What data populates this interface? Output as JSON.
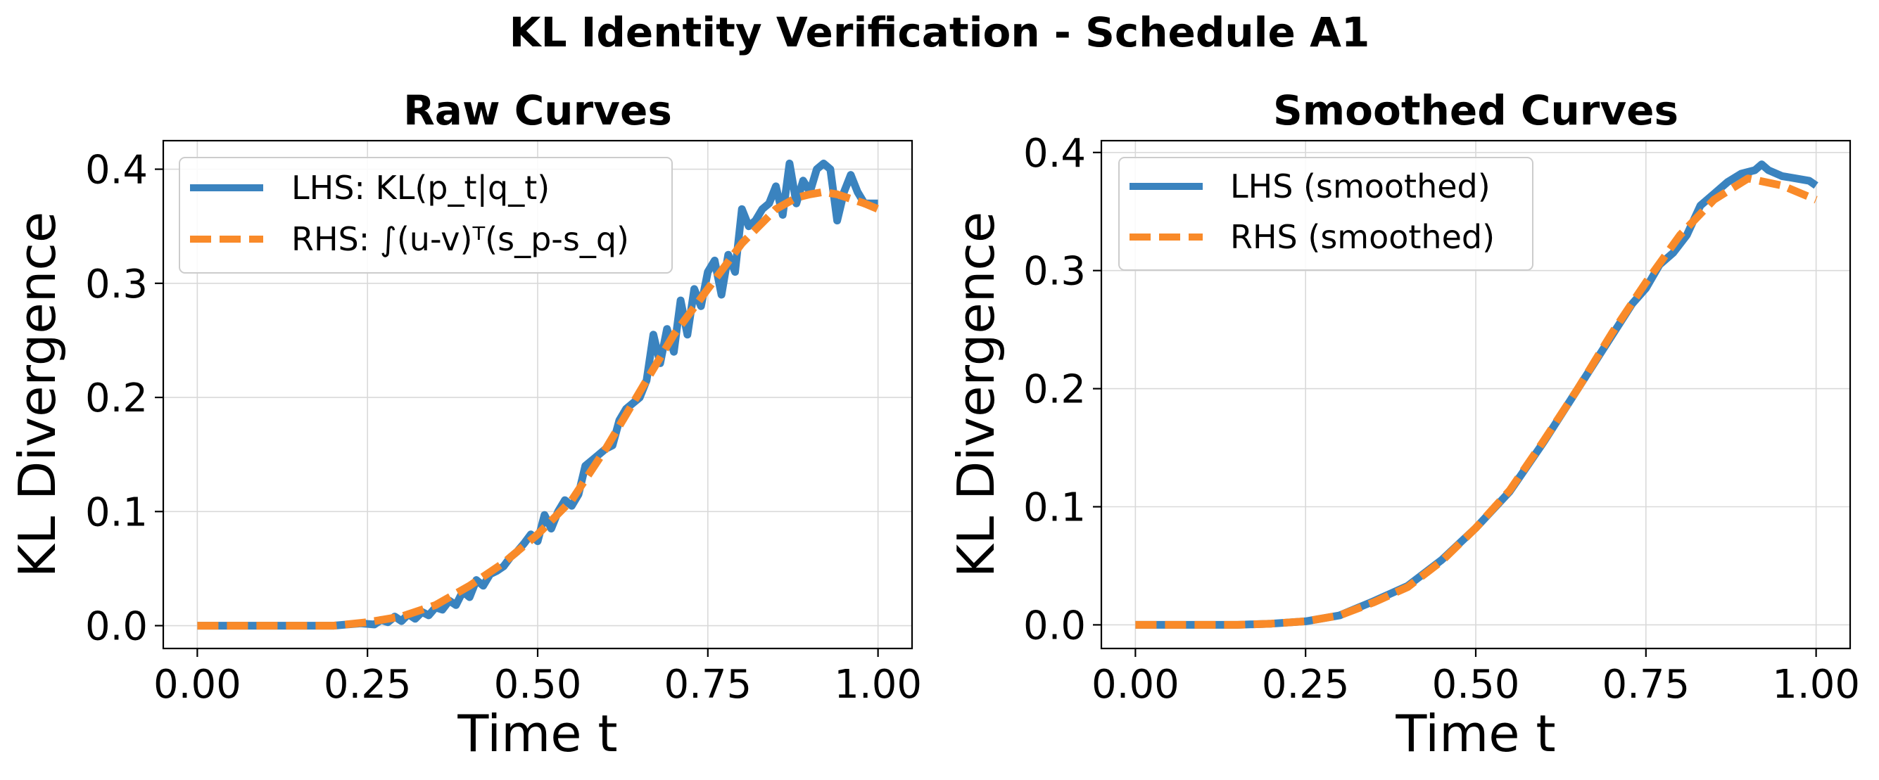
{
  "figure": {
    "suptitle": "KL Identity Verification - Schedule A1",
    "colors": {
      "lhs": "#3a83bf",
      "rhs": "#f98a29"
    }
  },
  "chart_data": [
    {
      "type": "line",
      "title": "Raw Curves",
      "xlabel": "Time t",
      "ylabel": "KL Divergence",
      "xlim": [
        -0.05,
        1.05
      ],
      "ylim": [
        -0.02,
        0.425
      ],
      "xticks": [
        0.0,
        0.25,
        0.5,
        0.75,
        1.0
      ],
      "xtick_labels": [
        "0.00",
        "0.25",
        "0.50",
        "0.75",
        "1.00"
      ],
      "yticks": [
        0.0,
        0.1,
        0.2,
        0.3,
        0.4
      ],
      "ytick_labels": [
        "0.0",
        "0.1",
        "0.2",
        "0.3",
        "0.4"
      ],
      "grid": true,
      "legend_position": "upper-left",
      "series": [
        {
          "name": "LHS: KL(p_t|q_t)",
          "style": "solid",
          "x": [
            0.0,
            0.05,
            0.1,
            0.15,
            0.2,
            0.22,
            0.24,
            0.26,
            0.27,
            0.28,
            0.29,
            0.3,
            0.31,
            0.32,
            0.33,
            0.34,
            0.35,
            0.36,
            0.37,
            0.38,
            0.39,
            0.4,
            0.41,
            0.42,
            0.43,
            0.44,
            0.45,
            0.46,
            0.47,
            0.48,
            0.49,
            0.5,
            0.51,
            0.52,
            0.53,
            0.54,
            0.55,
            0.56,
            0.57,
            0.58,
            0.59,
            0.6,
            0.61,
            0.62,
            0.63,
            0.64,
            0.65,
            0.66,
            0.67,
            0.68,
            0.69,
            0.7,
            0.71,
            0.72,
            0.73,
            0.74,
            0.75,
            0.76,
            0.77,
            0.78,
            0.79,
            0.8,
            0.81,
            0.82,
            0.83,
            0.84,
            0.85,
            0.86,
            0.87,
            0.88,
            0.89,
            0.9,
            0.91,
            0.92,
            0.93,
            0.94,
            0.95,
            0.96,
            0.97,
            0.98,
            0.99,
            1.0
          ],
          "y": [
            0.0,
            0.0,
            0.0,
            0.0,
            0.0,
            0.001,
            0.002,
            0.001,
            0.005,
            0.003,
            0.008,
            0.004,
            0.01,
            0.006,
            0.012,
            0.009,
            0.016,
            0.014,
            0.022,
            0.018,
            0.03,
            0.025,
            0.04,
            0.035,
            0.045,
            0.048,
            0.052,
            0.06,
            0.065,
            0.072,
            0.08,
            0.074,
            0.097,
            0.085,
            0.1,
            0.11,
            0.105,
            0.115,
            0.14,
            0.145,
            0.15,
            0.155,
            0.158,
            0.18,
            0.19,
            0.195,
            0.2,
            0.215,
            0.255,
            0.23,
            0.26,
            0.24,
            0.285,
            0.255,
            0.295,
            0.28,
            0.31,
            0.32,
            0.29,
            0.325,
            0.31,
            0.365,
            0.35,
            0.355,
            0.365,
            0.37,
            0.385,
            0.36,
            0.405,
            0.37,
            0.39,
            0.38,
            0.4,
            0.405,
            0.4,
            0.355,
            0.38,
            0.395,
            0.38,
            0.37,
            0.37,
            0.37
          ]
        },
        {
          "name": "RHS: ∫(u-v)ᵀ(s_p-s_q)",
          "style": "dashed",
          "x": [
            0.0,
            0.1,
            0.2,
            0.25,
            0.3,
            0.35,
            0.4,
            0.45,
            0.5,
            0.55,
            0.6,
            0.65,
            0.7,
            0.75,
            0.8,
            0.85,
            0.88,
            0.9,
            0.92,
            0.94,
            0.96,
            0.98,
            1.0
          ],
          "y": [
            0.0,
            0.0,
            0.0,
            0.003,
            0.008,
            0.018,
            0.035,
            0.055,
            0.08,
            0.11,
            0.155,
            0.205,
            0.255,
            0.295,
            0.335,
            0.365,
            0.375,
            0.378,
            0.38,
            0.378,
            0.374,
            0.37,
            0.365
          ]
        }
      ]
    },
    {
      "type": "line",
      "title": "Smoothed Curves",
      "xlabel": "Time t",
      "ylabel": "KL Divergence",
      "xlim": [
        -0.05,
        1.05
      ],
      "ylim": [
        -0.02,
        0.41
      ],
      "xticks": [
        0.0,
        0.25,
        0.5,
        0.75,
        1.0
      ],
      "xtick_labels": [
        "0.00",
        "0.25",
        "0.50",
        "0.75",
        "1.00"
      ],
      "yticks": [
        0.0,
        0.1,
        0.2,
        0.3,
        0.4
      ],
      "ytick_labels": [
        "0.0",
        "0.1",
        "0.2",
        "0.3",
        "0.4"
      ],
      "grid": true,
      "legend_position": "upper-left",
      "series": [
        {
          "name": "LHS (smoothed)",
          "style": "solid",
          "x": [
            0.0,
            0.05,
            0.1,
            0.15,
            0.2,
            0.25,
            0.3,
            0.35,
            0.4,
            0.45,
            0.5,
            0.55,
            0.6,
            0.65,
            0.7,
            0.73,
            0.75,
            0.77,
            0.79,
            0.81,
            0.83,
            0.85,
            0.87,
            0.89,
            0.91,
            0.92,
            0.93,
            0.95,
            0.97,
            0.99,
            1.0
          ],
          "y": [
            0.0,
            0.0,
            0.0,
            0.0,
            0.001,
            0.003,
            0.008,
            0.02,
            0.033,
            0.055,
            0.082,
            0.113,
            0.155,
            0.2,
            0.245,
            0.272,
            0.285,
            0.305,
            0.315,
            0.33,
            0.355,
            0.365,
            0.375,
            0.382,
            0.385,
            0.39,
            0.385,
            0.38,
            0.378,
            0.376,
            0.372
          ]
        },
        {
          "name": "RHS (smoothed)",
          "style": "dashed",
          "x": [
            0.0,
            0.05,
            0.1,
            0.15,
            0.2,
            0.25,
            0.3,
            0.35,
            0.4,
            0.45,
            0.5,
            0.55,
            0.6,
            0.65,
            0.7,
            0.75,
            0.8,
            0.85,
            0.9,
            0.95,
            1.0
          ],
          "y": [
            0.0,
            0.0,
            0.0,
            0.0,
            0.001,
            0.003,
            0.008,
            0.019,
            0.032,
            0.054,
            0.082,
            0.114,
            0.156,
            0.2,
            0.247,
            0.29,
            0.33,
            0.36,
            0.378,
            0.372,
            0.36
          ]
        }
      ]
    }
  ]
}
